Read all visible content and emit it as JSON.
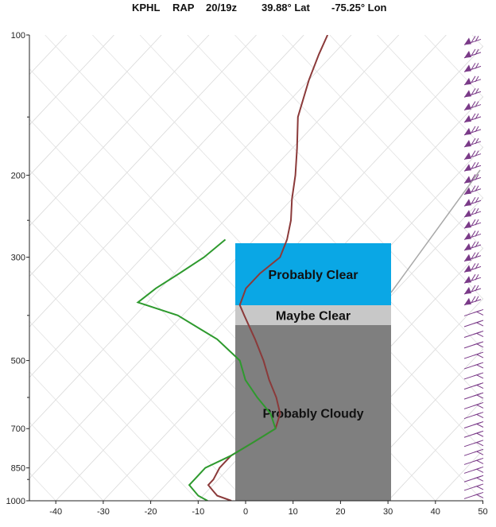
{
  "header": {
    "station": "KPHL",
    "model": "RAP",
    "time": "20/19z",
    "lat": "39.88° Lat",
    "lon": "-75.25° Lon"
  },
  "chart_data": {
    "type": "skew-t",
    "title": "KPHL   RAP   20/19z      39.88° Lat   -75.25° Lon",
    "xlabel": "",
    "ylabel": "",
    "x_ticks": [
      -40,
      -30,
      -20,
      -10,
      0,
      10,
      20,
      30,
      40,
      50
    ],
    "y_ticks": [
      100,
      200,
      300,
      500,
      700,
      850,
      1000
    ],
    "y_scale": "log",
    "xlim": [
      -44,
      50
    ],
    "ylim": [
      1000,
      100
    ],
    "grid": true,
    "series": [
      {
        "role": "temperature",
        "color": "#8b3a3a",
        "points": [
          {
            "p": 1000,
            "t": -3
          },
          {
            "p": 975,
            "t": -7
          },
          {
            "p": 950,
            "t": -9
          },
          {
            "p": 925,
            "t": -11
          },
          {
            "p": 900,
            "t": -11
          },
          {
            "p": 850,
            "t": -12
          },
          {
            "p": 800,
            "t": -12
          },
          {
            "p": 750,
            "t": -10
          },
          {
            "p": 700,
            "t": -8
          },
          {
            "p": 650,
            "t": -10
          },
          {
            "p": 600,
            "t": -14
          },
          {
            "p": 550,
            "t": -19
          },
          {
            "p": 500,
            "t": -24
          },
          {
            "p": 450,
            "t": -30
          },
          {
            "p": 400,
            "t": -37
          },
          {
            "p": 380,
            "t": -40
          },
          {
            "p": 350,
            "t": -42
          },
          {
            "p": 325,
            "t": -42
          },
          {
            "p": 300,
            "t": -41
          },
          {
            "p": 275,
            "t": -43
          },
          {
            "p": 250,
            "t": -46
          },
          {
            "p": 225,
            "t": -50
          },
          {
            "p": 200,
            "t": -54
          },
          {
            "p": 175,
            "t": -59
          },
          {
            "p": 150,
            "t": -65
          },
          {
            "p": 125,
            "t": -70
          },
          {
            "p": 110,
            "t": -73
          },
          {
            "p": 100,
            "t": -75
          }
        ]
      },
      {
        "role": "dewpoint",
        "color": "#2e9a2e",
        "points": [
          {
            "p": 1000,
            "t": -8
          },
          {
            "p": 975,
            "t": -11
          },
          {
            "p": 950,
            "t": -13
          },
          {
            "p": 925,
            "t": -15
          },
          {
            "p": 900,
            "t": -15
          },
          {
            "p": 850,
            "t": -15
          },
          {
            "p": 800,
            "t": -12
          },
          {
            "p": 750,
            "t": -10
          },
          {
            "p": 700,
            "t": -8
          },
          {
            "p": 650,
            "t": -12
          },
          {
            "p": 600,
            "t": -18
          },
          {
            "p": 550,
            "t": -24
          },
          {
            "p": 500,
            "t": -29
          },
          {
            "p": 450,
            "t": -38
          },
          {
            "p": 400,
            "t": -51
          },
          {
            "p": 375,
            "t": -62
          },
          {
            "p": 350,
            "t": -61
          },
          {
            "p": 325,
            "t": -59
          },
          {
            "p": 300,
            "t": -57
          },
          {
            "p": 275,
            "t": -56
          }
        ]
      }
    ],
    "overlays": [
      {
        "label": "Probably Clear",
        "p_top": 280,
        "p_bottom": 380,
        "color": "#0aa7e5"
      },
      {
        "label": "Maybe Clear",
        "p_top": 380,
        "p_bottom": 420,
        "color": "#c8c8c8"
      },
      {
        "label": "Probably Cloudy",
        "p_top": 420,
        "p_bottom": 1000,
        "color": "#7f7f7f"
      }
    ],
    "wind_barbs": {
      "color": "#7a3a88",
      "levels": [
        105,
        112,
        120,
        128,
        136,
        145,
        154,
        164,
        174,
        185,
        196,
        208,
        220,
        233,
        246,
        260,
        275,
        290,
        306,
        323,
        341,
        360,
        380,
        401,
        423,
        446,
        470,
        495,
        521,
        548,
        576,
        605,
        635,
        666,
        698,
        731,
        765,
        800,
        836,
        873,
        911,
        950,
        990
      ]
    }
  }
}
